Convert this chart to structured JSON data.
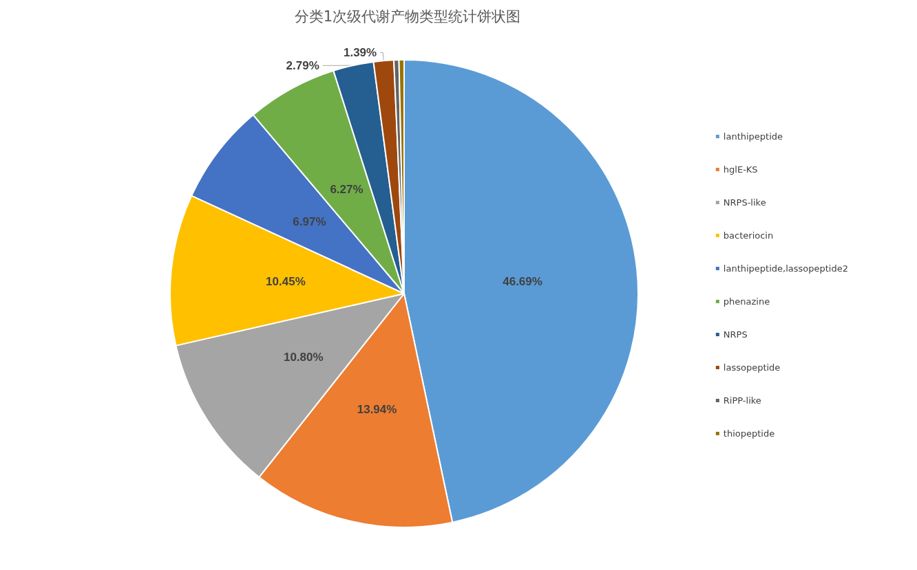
{
  "chart_data": {
    "type": "pie",
    "title": "分类1次级代谢产物类型统计饼状图",
    "categories": [
      "lanthipeptide",
      "hglE-KS",
      "NRPS-like",
      "bacteriocin",
      "lanthipeptide,lassopeptide2",
      "phenazine",
      "NRPS",
      "lassopeptide",
      "RiPP-like",
      "thiopeptide"
    ],
    "values": [
      46.69,
      13.94,
      10.8,
      10.45,
      6.97,
      6.27,
      2.79,
      1.39,
      0.35,
      0.35
    ],
    "value_labels": [
      "46.69%",
      "13.94%",
      "10.80%",
      "10.45%",
      "6.97%",
      "6.27%",
      "2.79%",
      "1.39%",
      null,
      null
    ],
    "colors": [
      "#5b9bd5",
      "#ed7d31",
      "#a5a5a5",
      "#ffc000",
      "#4472c4",
      "#70ad47",
      "#255e91",
      "#9e480e",
      "#636363",
      "#997300"
    ],
    "legend": "right"
  }
}
